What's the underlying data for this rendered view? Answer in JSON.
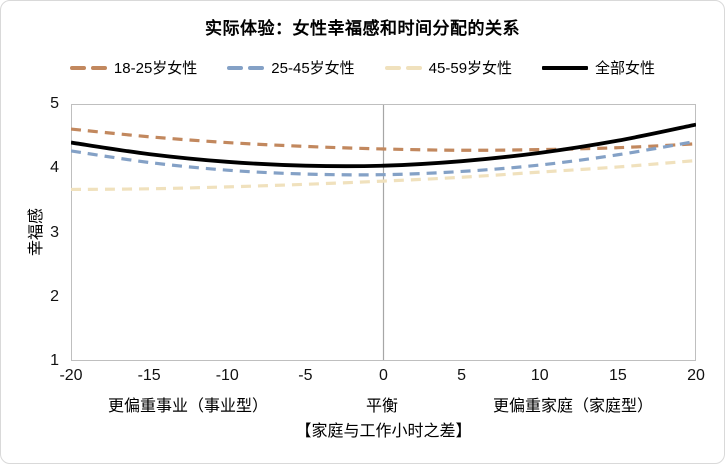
{
  "title": "实际体验：女性幸福感和时间分配的关系",
  "colors": {
    "frame_border": "#d9d9d9",
    "plot_border": "#bfbfbf",
    "balance_line": "#a6a6a6",
    "text": "#000000"
  },
  "chart_data": {
    "type": "line",
    "title": "实际体验：女性幸福感和时间分配的关系",
    "xlabel": "【家庭与工作小时之差】",
    "ylabel": "幸福感",
    "xlim": [
      -20,
      20
    ],
    "ylim": [
      1,
      5
    ],
    "x_ticks": [
      -20,
      -15,
      -10,
      -5,
      0,
      5,
      10,
      15,
      20
    ],
    "y_ticks": [
      5,
      4,
      3,
      2,
      1
    ],
    "grid": "single vertical reference line at x=0, plot area boxed",
    "legend_position": "top",
    "x": [
      -20,
      -15,
      -10,
      -5,
      0,
      5,
      10,
      15,
      20
    ],
    "series": [
      {
        "name": "18-25岁女性",
        "color": "#c2885e",
        "dash": true,
        "values": [
          4.61,
          4.49,
          4.4,
          4.34,
          4.3,
          4.28,
          4.29,
          4.32,
          4.38
        ]
      },
      {
        "name": "25-45岁女性",
        "color": "#84a1c6",
        "dash": true,
        "values": [
          4.27,
          4.09,
          3.97,
          3.91,
          3.9,
          3.95,
          4.05,
          4.21,
          4.42
        ]
      },
      {
        "name": "45-59岁女性",
        "color": "#f0e1bd",
        "dash": true,
        "values": [
          3.67,
          3.68,
          3.71,
          3.75,
          3.8,
          3.86,
          3.94,
          4.02,
          4.12
        ]
      },
      {
        "name": "全部女性",
        "color": "#000000",
        "dash": false,
        "values": [
          4.4,
          4.22,
          4.1,
          4.04,
          4.04,
          4.11,
          4.24,
          4.43,
          4.68
        ]
      }
    ],
    "annotations": {
      "career": "更偏重事业（事业型）",
      "balance": "平衡",
      "family": "更偏重家庭（家庭型）"
    }
  }
}
